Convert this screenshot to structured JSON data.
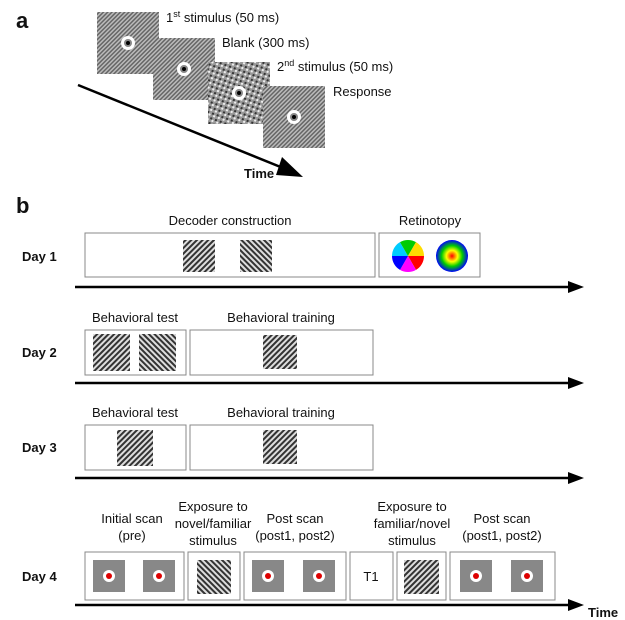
{
  "panel_a": {
    "label": "a",
    "stimuli": [
      {
        "ordinal": "1",
        "suffix": "st",
        "text": " stimulus (50 ms)"
      },
      {
        "text": "Blank (300 ms)"
      },
      {
        "ordinal": "2",
        "suffix": "nd",
        "text": " stimulus (50 ms)"
      },
      {
        "text": "Response"
      }
    ],
    "time_label": "Time"
  },
  "panel_b": {
    "label": "b",
    "days": [
      {
        "label": "Day 1",
        "sessions": [
          {
            "title": [
              "Decoder construction"
            ]
          },
          {
            "title": [
              "Retinotopy"
            ]
          }
        ]
      },
      {
        "label": "Day 2",
        "sessions": [
          {
            "title": [
              "Behavioral test"
            ]
          },
          {
            "title": [
              "Behavioral training"
            ]
          }
        ]
      },
      {
        "label": "Day 3",
        "sessions": [
          {
            "title": [
              "Behavioral test"
            ]
          },
          {
            "title": [
              "Behavioral training"
            ]
          }
        ]
      },
      {
        "label": "Day 4",
        "sessions": [
          {
            "title": [
              "Initial scan",
              "(pre)"
            ]
          },
          {
            "title": [
              "Exposure to",
              "novel/familiar",
              "stimulus"
            ]
          },
          {
            "title": [
              "Post scan",
              "(post1, post2)"
            ]
          },
          {
            "marker": "T1"
          },
          {
            "title": [
              "Exposure to",
              "familiar/novel",
              "stimulus"
            ]
          },
          {
            "title": [
              "Post scan",
              "(post1, post2)"
            ]
          }
        ]
      }
    ],
    "time_label": "Time"
  }
}
